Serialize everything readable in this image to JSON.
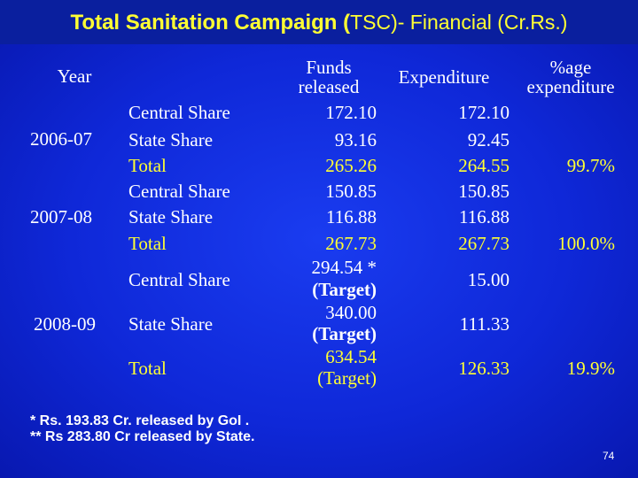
{
  "title": {
    "main": "Total Sanitation Campaign (",
    "sub": "TSC)- Financial (Cr.Rs.)"
  },
  "headers": {
    "year": "Year",
    "funds_line1": "Funds",
    "funds_line2": "released",
    "expenditure": "Expenditure",
    "pct_line1": "%age",
    "pct_line2": "expenditure"
  },
  "rows": {
    "y2006": {
      "year": "2006-07",
      "central": {
        "label": "Central Share",
        "funds": "172.10",
        "exp": "172.10"
      },
      "state": {
        "label": "State Share",
        "funds": "93.16",
        "exp": "92.45"
      },
      "total": {
        "label": "Total",
        "funds": "265.26",
        "exp": "264.55",
        "pct": "99.7%"
      }
    },
    "y2007": {
      "year": "2007-08",
      "central": {
        "label": "Central Share",
        "funds": "150.85",
        "exp": "150.85"
      },
      "state": {
        "label": "State Share",
        "funds": "116.88",
        "exp": "116.88"
      },
      "total": {
        "label": "Total",
        "funds": "267.73",
        "exp": "267.73",
        "pct": "100.0%"
      }
    },
    "y2008": {
      "year": "2008-09",
      "central": {
        "label": "Central Share",
        "funds": "294.54 *",
        "funds_note": "(Target)",
        "exp": "15.00"
      },
      "state": {
        "label": "State Share",
        "funds": "340.00",
        "funds_note": "(Target)",
        "exp": "111.33"
      },
      "total": {
        "label": "Total",
        "funds": "634.54",
        "funds_note": "(Target)",
        "exp": "126.33",
        "pct": "19.9%"
      }
    }
  },
  "footnotes": [
    "*  Rs. 193.83 Cr. released by GoI .",
    "** Rs 283.80 Cr released by State."
  ],
  "page_number": "74",
  "colors": {
    "background": "#1230e0",
    "title": "#ffff33",
    "highlight": "#ffff33",
    "text": "#ffffff"
  }
}
